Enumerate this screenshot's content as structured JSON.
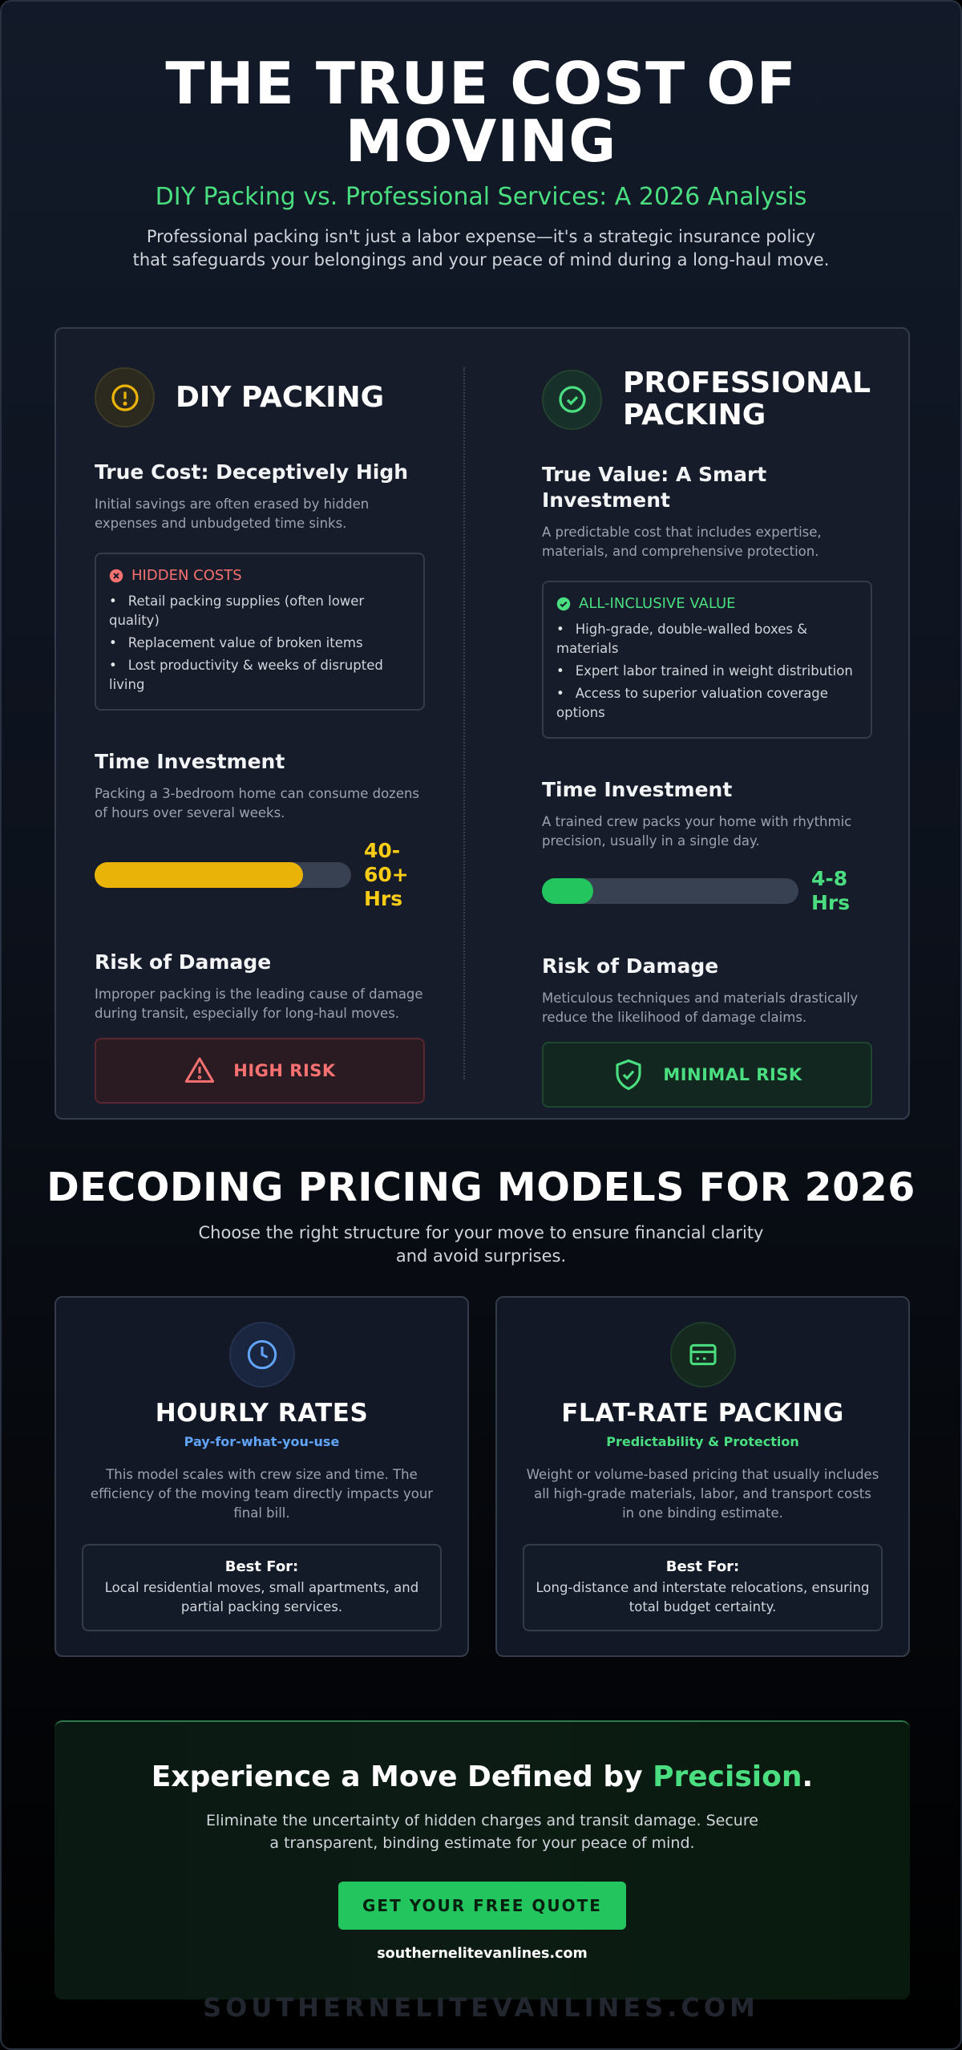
{
  "header": {
    "title": "THE TRUE COST OF MOVING",
    "subtitle": "DIY Packing vs. Professional Services: A 2026 Analysis",
    "intro": "Professional packing isn't just a labor expense—it's a strategic insurance policy that safeguards your belongings and your peace of mind during a long-haul move."
  },
  "comparison": {
    "diy": {
      "heading": "DIY PACKING",
      "cost_title": "True Cost: Deceptively High",
      "cost_text": "Initial savings are often erased by hidden expenses and unbudgeted time sinks.",
      "box_title": "HIDDEN COSTS",
      "box_items": [
        "Retail packing supplies (often lower quality)",
        "Replacement value of broken items",
        "Lost productivity & weeks of disrupted living"
      ],
      "time_title": "Time Investment",
      "time_text": "Packing a 3-bedroom home can consume dozens of hours over several weeks.",
      "time_value": "40-60+ Hrs",
      "risk_title": "Risk of Damage",
      "risk_text": "Improper packing is the leading cause of damage during transit, especially for long-haul moves.",
      "risk_badge": "HIGH RISK"
    },
    "pro": {
      "heading": "PROFESSIONAL PACKING",
      "cost_title": "True Value: A Smart Investment",
      "cost_text": "A predictable cost that includes expertise, materials, and comprehensive protection.",
      "box_title": "ALL-INCLUSIVE VALUE",
      "box_items": [
        "High-grade, double-walled boxes & materials",
        "Expert labor trained in weight distribution",
        "Access to superior valuation coverage options"
      ],
      "time_title": "Time Investment",
      "time_text": "A trained crew packs your home with rhythmic precision, usually in a single day.",
      "time_value": "4-8 Hrs",
      "risk_title": "Risk of Damage",
      "risk_text": "Meticulous techniques and materials drastically reduce the likelihood of damage claims.",
      "risk_badge": "MINIMAL RISK"
    }
  },
  "pricing": {
    "title": "DECODING PRICING MODELS FOR 2026",
    "subtitle": "Choose the right structure for your move to ensure financial clarity and avoid surprises.",
    "cards": [
      {
        "title": "HOURLY RATES",
        "tagline": "Pay-for-what-you-use",
        "text": "This model scales with crew size and time. The efficiency of the moving team directly impacts your final bill.",
        "best_for_label": "Best For:",
        "best_for_text": "Local residential moves, small apartments, and partial packing services."
      },
      {
        "title": "FLAT-RATE PACKING",
        "tagline": "Predictability & Protection",
        "text": "Weight or volume-based pricing that usually includes all high-grade materials, labor, and transport costs in one binding estimate.",
        "best_for_label": "Best For:",
        "best_for_text": "Long-distance and interstate relocations, ensuring total budget certainty."
      }
    ]
  },
  "cta": {
    "title_before": "Experience a Move Defined by ",
    "title_highlight": "Precision",
    "title_after": ".",
    "text": "Eliminate the uncertainty of hidden charges and transit damage. Secure a transparent, binding estimate for your peace of mind.",
    "button": "GET YOUR FREE QUOTE",
    "site": "southernelitevanlines.com"
  },
  "footer": {
    "watermark": "SOUTHERNELITEVANLINES.COM"
  }
}
